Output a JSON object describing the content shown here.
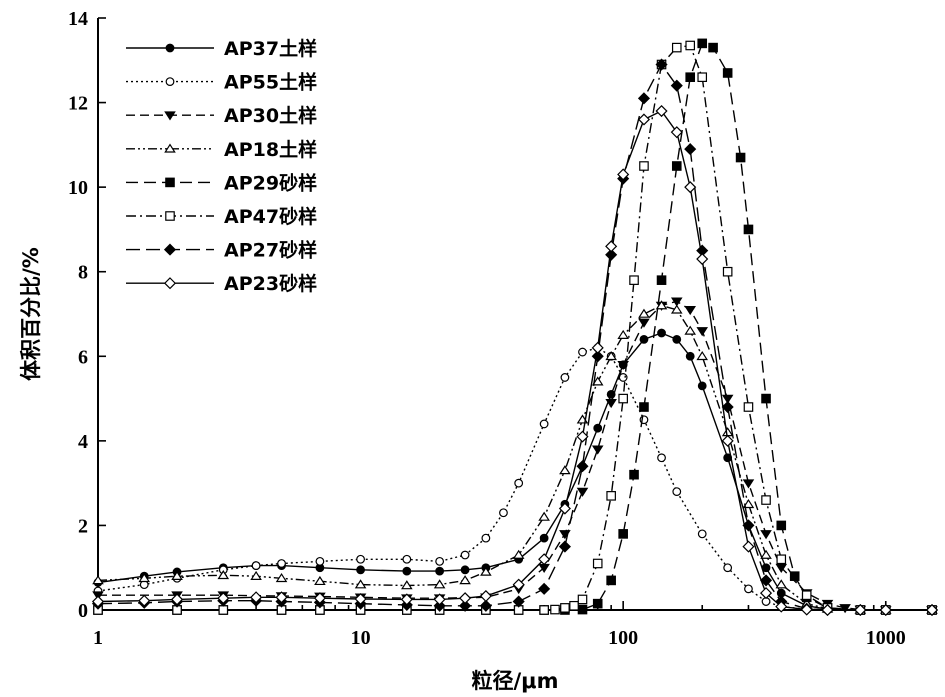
{
  "chart_data": {
    "type": "line",
    "xlabel": "粒径/μm",
    "ylabel": "体积百分比/%",
    "xscale": "log",
    "xlim": [
      1,
      1500
    ],
    "ylim": [
      0,
      14
    ],
    "xticks": [
      1,
      10,
      100,
      1000
    ],
    "xtick_labels": [
      "1",
      "10",
      "100",
      "1000"
    ],
    "yticks": [
      0,
      2,
      4,
      6,
      8,
      10,
      12,
      14
    ],
    "ytick_labels": [
      "0",
      "2",
      "4",
      "6",
      "8",
      "10",
      "12",
      "14"
    ],
    "legend_position": "top-left",
    "grid": false,
    "series": [
      {
        "name": "AP37土样",
        "dash": "",
        "marker": "circle-filled",
        "x": [
          1,
          1.5,
          2,
          3,
          4,
          5,
          7,
          10,
          15,
          20,
          25,
          30,
          40,
          50,
          60,
          70,
          80,
          90,
          100,
          120,
          140,
          160,
          180,
          200,
          250,
          300,
          350,
          400,
          500,
          600,
          800,
          1000,
          1500
        ],
        "y": [
          0.65,
          0.8,
          0.9,
          1.0,
          1.05,
          1.05,
          1.0,
          0.95,
          0.92,
          0.92,
          0.95,
          1.0,
          1.2,
          1.7,
          2.5,
          3.4,
          4.3,
          5.1,
          5.8,
          6.4,
          6.55,
          6.4,
          6.0,
          5.3,
          3.6,
          2.0,
          1.0,
          0.4,
          0.1,
          0.02,
          0,
          0,
          0
        ]
      },
      {
        "name": "AP55土样",
        "dash": "2,3",
        "marker": "circle-open",
        "x": [
          1,
          1.5,
          2,
          3,
          4,
          5,
          7,
          10,
          15,
          20,
          25,
          30,
          35,
          40,
          50,
          60,
          70,
          80,
          90,
          100,
          120,
          140,
          160,
          200,
          250,
          300,
          350,
          400,
          500,
          600,
          800,
          1000,
          1500
        ],
        "y": [
          0.45,
          0.6,
          0.75,
          0.95,
          1.05,
          1.1,
          1.15,
          1.2,
          1.2,
          1.15,
          1.3,
          1.7,
          2.3,
          3.0,
          4.4,
          5.5,
          6.1,
          6.2,
          6.0,
          5.5,
          4.5,
          3.6,
          2.8,
          1.8,
          1.0,
          0.5,
          0.2,
          0.08,
          0.02,
          0,
          0,
          0,
          0
        ]
      },
      {
        "name": "AP30土样",
        "dash": "9,5",
        "marker": "triangle-down-filled",
        "x": [
          1,
          2,
          3,
          5,
          7,
          10,
          15,
          20,
          30,
          40,
          50,
          60,
          70,
          80,
          90,
          100,
          120,
          140,
          160,
          180,
          200,
          250,
          300,
          350,
          400,
          500,
          600,
          700,
          800,
          1000,
          1500
        ],
        "y": [
          0.35,
          0.35,
          0.35,
          0.33,
          0.32,
          0.3,
          0.28,
          0.28,
          0.3,
          0.5,
          1.0,
          1.8,
          2.8,
          3.8,
          4.9,
          5.8,
          6.8,
          7.2,
          7.3,
          7.1,
          6.6,
          5.0,
          3.0,
          1.8,
          1.0,
          0.4,
          0.15,
          0.05,
          0.01,
          0,
          0
        ]
      },
      {
        "name": "AP18土样",
        "dash": "9,3,2,3,2,3",
        "marker": "triangle-up-open",
        "x": [
          1,
          1.5,
          2,
          3,
          4,
          5,
          7,
          10,
          15,
          20,
          25,
          30,
          40,
          50,
          60,
          70,
          80,
          90,
          100,
          120,
          140,
          160,
          180,
          200,
          250,
          300,
          350,
          400,
          500,
          600,
          800,
          1000,
          1500
        ],
        "y": [
          0.7,
          0.75,
          0.8,
          0.82,
          0.8,
          0.75,
          0.68,
          0.6,
          0.58,
          0.6,
          0.7,
          0.9,
          1.3,
          2.2,
          3.3,
          4.5,
          5.4,
          6.0,
          6.5,
          7.0,
          7.2,
          7.1,
          6.6,
          6.0,
          4.2,
          2.5,
          1.3,
          0.6,
          0.15,
          0.03,
          0,
          0,
          0
        ]
      },
      {
        "name": "AP29砂样",
        "dash": "12,6",
        "marker": "square-filled",
        "x": [
          1,
          2,
          3,
          5,
          7,
          10,
          15,
          20,
          30,
          40,
          50,
          60,
          70,
          80,
          90,
          100,
          110,
          120,
          140,
          160,
          180,
          200,
          220,
          250,
          280,
          300,
          350,
          400,
          450,
          500,
          600,
          800,
          1000,
          1500
        ],
        "y": [
          0,
          0,
          0,
          0,
          0,
          0,
          0,
          0,
          0,
          0,
          0,
          0,
          0.01,
          0.15,
          0.7,
          1.8,
          3.2,
          4.8,
          7.8,
          10.5,
          12.6,
          13.4,
          13.3,
          12.7,
          10.7,
          9.0,
          5.0,
          2.0,
          0.8,
          0.3,
          0.05,
          0,
          0,
          0
        ]
      },
      {
        "name": "AP47砂样",
        "dash": "10,4,2,4",
        "marker": "square-open",
        "x": [
          1,
          2,
          3,
          5,
          7,
          10,
          15,
          20,
          30,
          40,
          50,
          55,
          60,
          65,
          70,
          80,
          90,
          100,
          110,
          120,
          140,
          160,
          180,
          200,
          250,
          300,
          350,
          400,
          500,
          600,
          800,
          1000,
          1500
        ],
        "y": [
          0,
          0,
          0,
          0,
          0,
          0,
          0,
          0,
          0,
          0,
          0,
          0.01,
          0.05,
          0.1,
          0.25,
          1.1,
          2.7,
          5.0,
          7.8,
          10.5,
          12.9,
          13.3,
          13.35,
          12.6,
          8.0,
          4.8,
          2.6,
          1.2,
          0.35,
          0.05,
          0,
          0,
          0
        ]
      },
      {
        "name": "AP27砂样",
        "dash": "14,6",
        "marker": "diamond-filled",
        "x": [
          1,
          1.5,
          2,
          3,
          4,
          5,
          7,
          10,
          15,
          20,
          25,
          30,
          40,
          50,
          60,
          70,
          80,
          90,
          100,
          120,
          140,
          160,
          180,
          200,
          250,
          300,
          350,
          400,
          500,
          600,
          800,
          1000,
          1500
        ],
        "y": [
          0.15,
          0.17,
          0.2,
          0.22,
          0.22,
          0.2,
          0.18,
          0.15,
          0.12,
          0.1,
          0.1,
          0.1,
          0.2,
          0.5,
          1.5,
          3.4,
          6.0,
          8.4,
          10.2,
          12.1,
          12.9,
          12.4,
          10.9,
          8.5,
          4.8,
          2.0,
          0.7,
          0.2,
          0.03,
          0,
          0,
          0,
          0
        ]
      },
      {
        "name": "AP23砂样",
        "dash": "",
        "marker": "diamond-open",
        "x": [
          1,
          1.5,
          2,
          3,
          4,
          5,
          7,
          10,
          15,
          20,
          25,
          30,
          40,
          50,
          60,
          70,
          80,
          90,
          100,
          120,
          140,
          160,
          180,
          200,
          250,
          300,
          350,
          400,
          500,
          600,
          800,
          1000,
          1500
        ],
        "y": [
          0.2,
          0.22,
          0.25,
          0.28,
          0.3,
          0.3,
          0.28,
          0.26,
          0.25,
          0.25,
          0.28,
          0.33,
          0.6,
          1.2,
          2.4,
          4.1,
          6.2,
          8.6,
          10.3,
          11.6,
          11.8,
          11.3,
          10.0,
          8.3,
          4.0,
          1.5,
          0.4,
          0.08,
          0.01,
          0,
          0,
          0,
          0
        ]
      }
    ]
  }
}
